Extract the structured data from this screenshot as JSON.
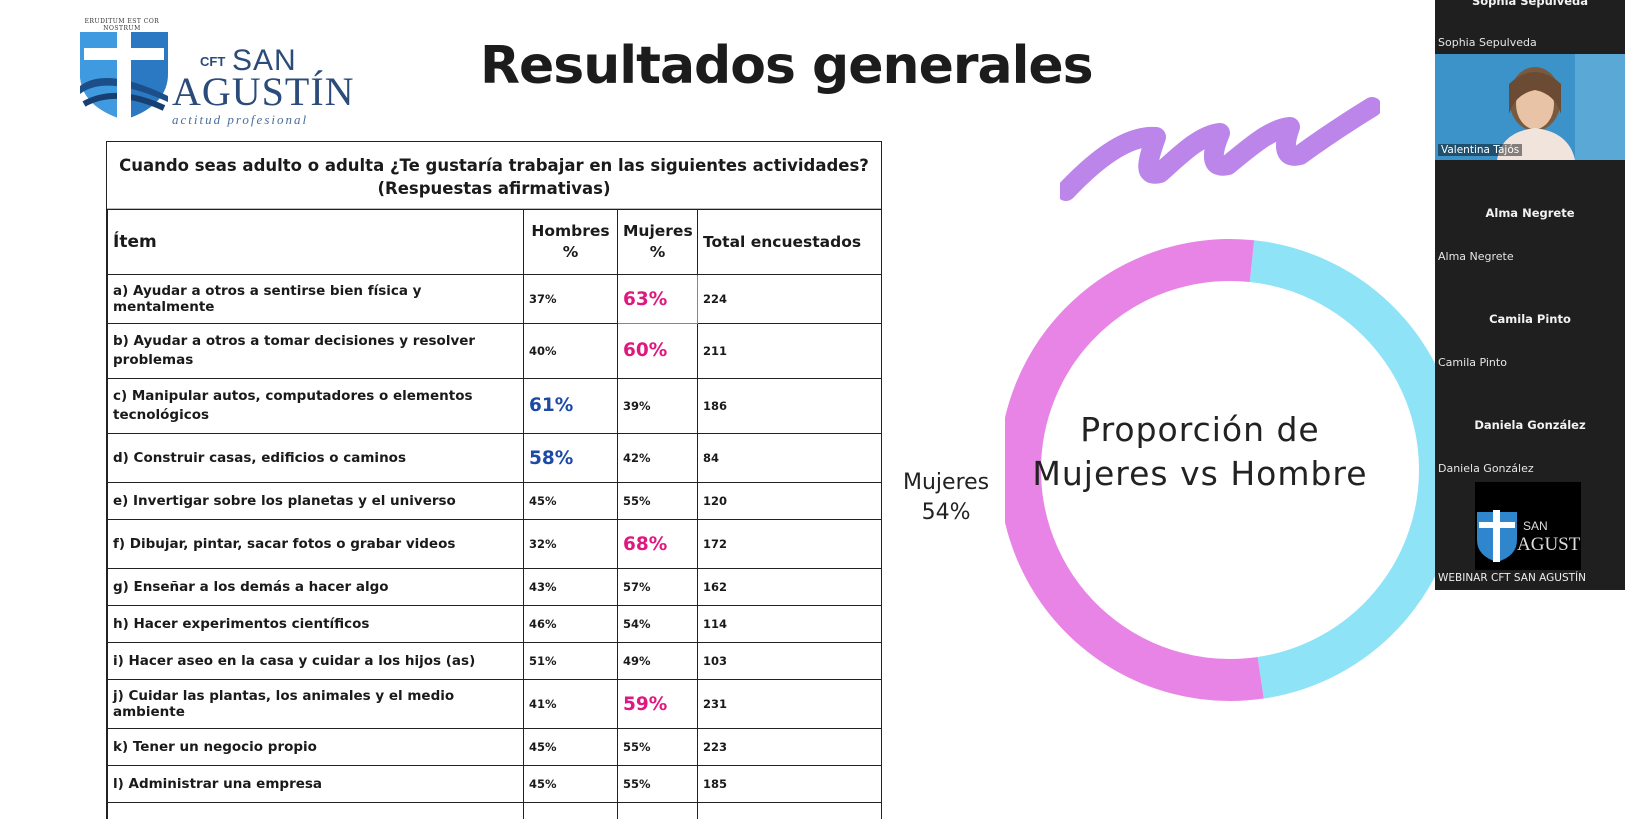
{
  "logo": {
    "motto": "ERUDITUM EST COR NOSTRUM",
    "cft": "CFT",
    "san": "SAN",
    "agustin": "AGUSTÍN",
    "tagline": "actitud profesional"
  },
  "slide_title": "Resultados generales",
  "table": {
    "question": "Cuando seas adulto o adulta ¿Te gustaría trabajar en las siguientes actividades?",
    "subtitle": "(Respuestas afirmativas)",
    "headers": {
      "item": "Ítem",
      "hombres": "Hombres %",
      "mujeres": "Mujeres %",
      "total": "Total encuestados"
    },
    "rows": [
      {
        "item": "a) Ayudar a otros a sentirse bien física y mentalmente",
        "hombres": "37%",
        "mujeres": "63%",
        "total": "224"
      },
      {
        "item": "b) Ayudar a  otros a tomar decisiones y resolver problemas",
        "hombres": "40%",
        "mujeres": "60%",
        "total": "211"
      },
      {
        "item": "c) Manipular  autos, computadores o elementos tecnológicos",
        "hombres": "61%",
        "mujeres": "39%",
        "total": "186"
      },
      {
        "item": "d) Construir  casas, edificios o caminos",
        "hombres": "58%",
        "mujeres": "42%",
        "total": "84"
      },
      {
        "item": "e) Invertigar  sobre los planetas y el universo",
        "hombres": "45%",
        "mujeres": "55%",
        "total": "120"
      },
      {
        "item": "f) Dibujar,  pintar, sacar fotos o grabar videos",
        "hombres": "32%",
        "mujeres": "68%",
        "total": "172"
      },
      {
        "item": "g) Enseñar a los demás a hacer algo",
        "hombres": "43%",
        "mujeres": "57%",
        "total": "162"
      },
      {
        "item": "h) Hacer  experimentos científicos",
        "hombres": "46%",
        "mujeres": "54%",
        "total": "114"
      },
      {
        "item": "i) Hacer aseo  en la casa y cuidar a los hijos (as)",
        "hombres": "51%",
        "mujeres": "49%",
        "total": "103"
      },
      {
        "item": "j) Cuidar las  plantas, los animales y el medio ambiente",
        "hombres": "41%",
        "mujeres": "59%",
        "total": "231"
      },
      {
        "item": "k) Tener un  negocio propio",
        "hombres": "45%",
        "mujeres": "55%",
        "total": "223"
      },
      {
        "item": "l) Administrar una empresa",
        "hombres": "45%",
        "mujeres": "55%",
        "total": "185"
      }
    ]
  },
  "chart_data": {
    "type": "pie",
    "title": "Proporción de Mujeres vs Hombre",
    "slices": [
      {
        "label": "Mujeres",
        "value": 54,
        "display": "Mujeres",
        "display_value": "54%",
        "color": "#e884e5"
      },
      {
        "label": "",
        "value": 46,
        "color": "#8ee3f7"
      }
    ]
  },
  "participants": {
    "top_name_cut": "Sophia Sepúlveda",
    "sophia": "Sophia Sepulveda",
    "video_name": "Valentina Tajós",
    "alma_center": "Alma Negrete",
    "alma_corner": "Alma Negrete",
    "camila_center": "Camila Pinto",
    "camila_corner": "Camila Pinto",
    "daniela_center": "Daniela González",
    "daniela_corner": "Daniela González",
    "webinar": "WEBINAR CFT SAN AGUSTÍN",
    "cam_logo_san": "SAN",
    "cam_logo_agustin": "AGUST"
  },
  "colors": {
    "pink_highlight": "#e0177f",
    "blue_highlight": "#1d4aa5",
    "stroke_purple": "#b57be8",
    "donut_pink": "#e884e5",
    "donut_cyan": "#8ee3f7",
    "panel_bg": "#1f1f1f"
  }
}
